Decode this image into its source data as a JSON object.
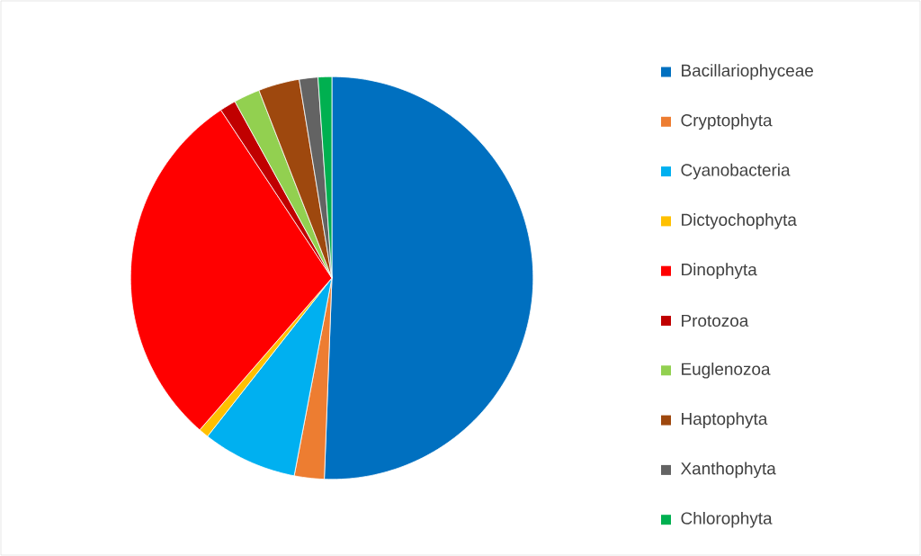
{
  "chart_data": {
    "type": "pie",
    "categories": [
      "Bacillariophyceae",
      "Cryptophyta",
      "Cyanobacteria",
      "Dictyochophyta",
      "Dinophyta",
      "Protozoa",
      "Euglenozoa",
      "Haptophyta",
      "Xanthophyta",
      "Chlorophyta"
    ],
    "values": [
      50.6,
      2.4,
      7.6,
      0.8,
      29.3,
      1.3,
      2.1,
      3.3,
      1.5,
      1.1
    ],
    "colors": [
      "#0070c0",
      "#ed7d31",
      "#00b0f0",
      "#ffc000",
      "#ff0000",
      "#c00000",
      "#92d050",
      "#9e480e",
      "#636363",
      "#00b050"
    ],
    "legend": "right"
  }
}
